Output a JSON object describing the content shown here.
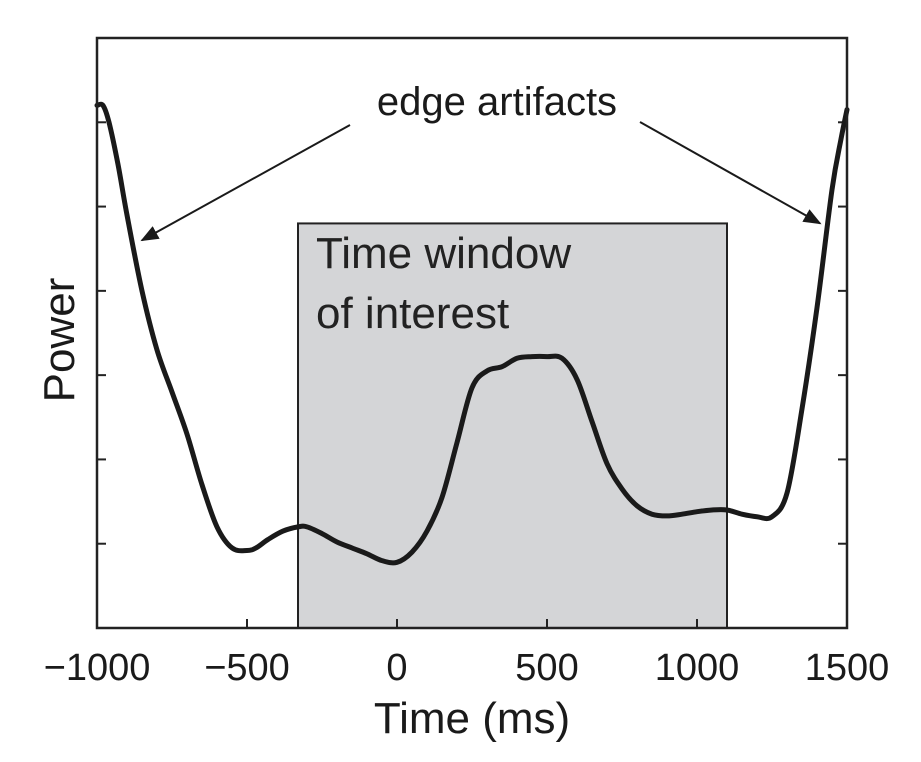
{
  "chart_data": {
    "type": "line",
    "xlabel": "Time (ms)",
    "ylabel": "Power",
    "xlim": [
      -1000,
      1500
    ],
    "ylim": [
      0,
      7
    ],
    "x_ticks": [
      -1000,
      -500,
      0,
      500,
      1000,
      1500
    ],
    "x_tick_labels": [
      "−1000",
      "−500",
      "0",
      "500",
      "1000",
      "1500"
    ],
    "y_ticks": [
      1,
      2,
      3,
      4,
      5,
      6
    ],
    "grid": false,
    "series": [
      {
        "color": "#1a1a1a",
        "x": [
          -1000,
          -980,
          -960,
          -930,
          -900,
          -850,
          -800,
          -750,
          -700,
          -650,
          -600,
          -550,
          -500,
          -470,
          -430,
          -380,
          -330,
          -300,
          -250,
          -200,
          -150,
          -100,
          -50,
          0,
          50,
          100,
          150,
          200,
          250,
          300,
          350,
          400,
          450,
          500,
          550,
          600,
          650,
          700,
          750,
          800,
          850,
          900,
          950,
          1000,
          1050,
          1100,
          1150,
          1200,
          1250,
          1300,
          1350,
          1400,
          1450,
          1480,
          1500
        ],
        "y": [
          6.2,
          6.2,
          6.0,
          5.5,
          4.9,
          4.0,
          3.3,
          2.8,
          2.3,
          1.7,
          1.2,
          0.95,
          0.92,
          0.95,
          1.05,
          1.15,
          1.2,
          1.2,
          1.12,
          1.02,
          0.95,
          0.88,
          0.8,
          0.78,
          0.9,
          1.15,
          1.55,
          2.2,
          2.85,
          3.05,
          3.1,
          3.2,
          3.22,
          3.22,
          3.2,
          2.95,
          2.45,
          1.95,
          1.65,
          1.45,
          1.35,
          1.33,
          1.35,
          1.38,
          1.4,
          1.4,
          1.35,
          1.32,
          1.32,
          1.6,
          2.6,
          3.8,
          5.2,
          5.8,
          6.15
        ]
      }
    ],
    "window": {
      "x0": -330,
      "x1": 1100,
      "y_top": 4.8,
      "color": "#d4d5d7"
    },
    "window_label": [
      "Time window",
      "of interest"
    ],
    "annotation": {
      "text": "edge artifacts",
      "arrow_targets": [
        {
          "x": -850,
          "y": 4.6
        },
        {
          "x": 1410,
          "y": 4.8
        }
      ]
    }
  }
}
